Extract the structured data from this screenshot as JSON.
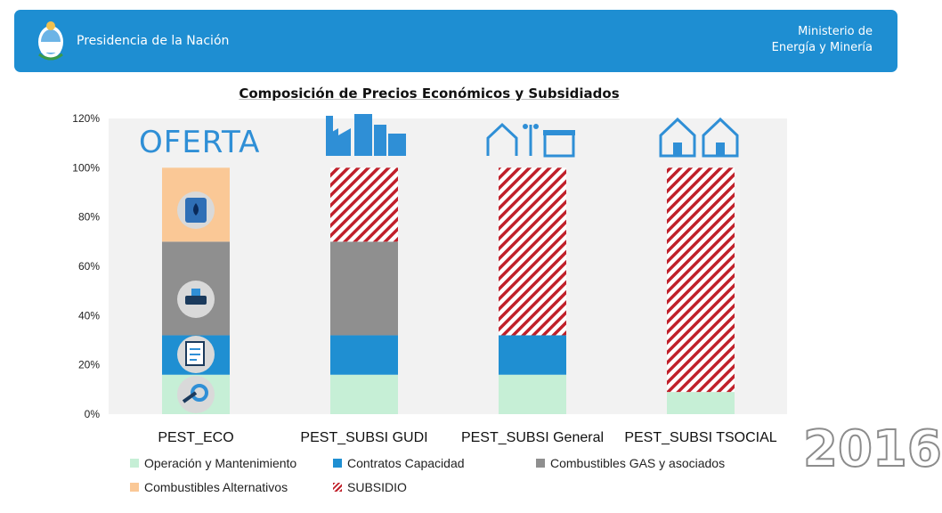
{
  "header": {
    "left_title": "Presidencia de la Nación",
    "right_line1": "Ministerio de",
    "right_line2": "Energía y Minería"
  },
  "overlay": {
    "oferta_label": "OFERTA",
    "year": "2016"
  },
  "colors": {
    "banner": "#1e8ed2",
    "operacion": "#c6efd6",
    "contratos": "#1f8fd2",
    "combustibles_gas": "#8f8f8f",
    "combustibles_alt": "#fac896",
    "subsidio": "#c0202a",
    "icon_blue": "#2f8fd6"
  },
  "icons": {
    "header": "argentina-coat-of-arms-icon",
    "pest_eco": [
      "oil-barrel-icon",
      "gas-valve-icon",
      "contract-document-icon",
      "wrench-gear-icon"
    ],
    "categories": [
      "factory-buildings-shop-icon",
      "house-streetlight-shop-icon",
      "two-houses-icon"
    ]
  },
  "chart_data": {
    "type": "bar",
    "stacked": true,
    "title": "Composición de Precios Económicos y Subsidiados",
    "categories": [
      "PEST_ECO",
      "PEST_SUBSI GUDI",
      "PEST_SUBSI General",
      "PEST_SUBSI TSOCIAL"
    ],
    "series": [
      {
        "name": "Operación y Mantenimiento",
        "values": [
          16,
          16,
          16,
          9
        ]
      },
      {
        "name": "Contratos Capacidad",
        "values": [
          16,
          16,
          16,
          0
        ]
      },
      {
        "name": "Combustibles GAS y asociados",
        "values": [
          38,
          38,
          0,
          0
        ]
      },
      {
        "name": "Combustibles Alternativos",
        "values": [
          30,
          0,
          0,
          0
        ]
      },
      {
        "name": "SUBSIDIO",
        "values": [
          0,
          30,
          68,
          91
        ]
      }
    ],
    "yticks": [
      "0%",
      "20%",
      "40%",
      "60%",
      "80%",
      "100%",
      "120%"
    ],
    "ylim": [
      0,
      120
    ],
    "grid": false,
    "legend": "bottom"
  }
}
